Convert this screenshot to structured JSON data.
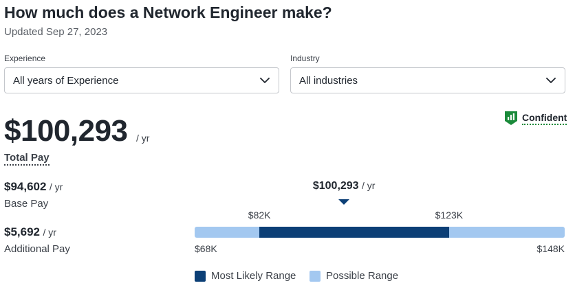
{
  "header": {
    "title": "How much does a Network Engineer make?",
    "updated": "Updated Sep 27, 2023"
  },
  "filters": {
    "experience": {
      "label": "Experience",
      "value": "All years of Experience"
    },
    "industry": {
      "label": "Industry",
      "value": "All industries"
    }
  },
  "pay": {
    "total": "$100,293",
    "total_unit": "/ yr",
    "total_label": "Total Pay",
    "base": "$94,602",
    "base_unit": "/ yr",
    "base_label": "Base Pay",
    "additional": "$5,692",
    "additional_unit": "/ yr",
    "additional_label": "Additional Pay"
  },
  "confidence": {
    "label": "Confident",
    "icon": "bar-chart-badge-icon",
    "color": "#1a8a3a"
  },
  "range": {
    "median_label": "$100,293",
    "median_unit": "/ yr",
    "median_value": 100293,
    "min_value": 68000,
    "max_value": 148000,
    "likely_low_value": 82000,
    "likely_high_value": 123000,
    "min_label": "$68K",
    "max_label": "$148K",
    "likely_low_label": "$82K",
    "likely_high_label": "$123K"
  },
  "legend": {
    "most_likely": "Most Likely Range",
    "possible": "Possible Range",
    "most_likely_color": "#0c3f76",
    "possible_color": "#a3c8f0"
  }
}
